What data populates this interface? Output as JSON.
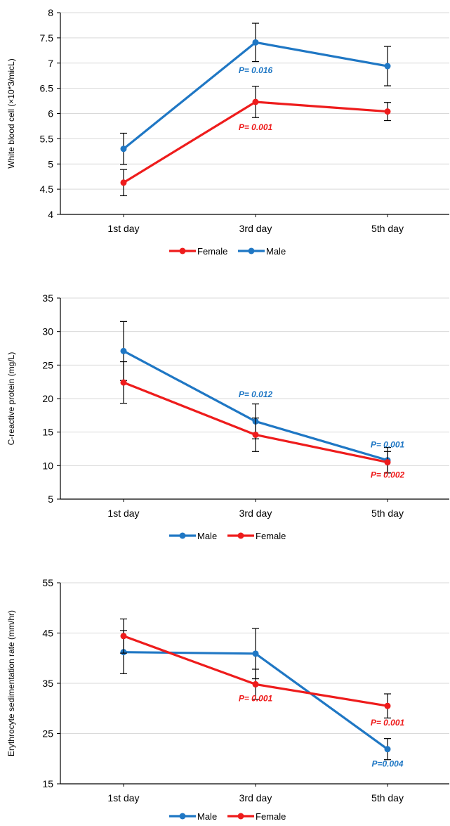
{
  "colors": {
    "male": "#1f77c4",
    "female": "#ee1c1c",
    "grid": "#d9d9d9",
    "axis": "#000000"
  },
  "chart_data": [
    {
      "type": "line",
      "title": "",
      "xlabel": "",
      "ylabel": "White blood cell (×10*3/micL)",
      "categories": [
        "1st  day",
        "3rd  day",
        "5th  day"
      ],
      "ylim": [
        4,
        8
      ],
      "yticks": [
        "4",
        "4.5",
        "5",
        "5.5",
        "6",
        "6.5",
        "7",
        "7.5",
        "8"
      ],
      "grid": true,
      "legend_position": "bottom",
      "legend_order": [
        "Female",
        "Male"
      ],
      "series": [
        {
          "name": "Female",
          "color": "#ee1c1c",
          "values": [
            4.63,
            6.23,
            6.04
          ],
          "error": [
            0.26,
            0.31,
            0.18
          ]
        },
        {
          "name": "Male",
          "color": "#1f77c4",
          "values": [
            5.3,
            7.41,
            6.94
          ],
          "error": [
            0.31,
            0.38,
            0.39
          ]
        }
      ],
      "annotations": [
        {
          "text": "P= 0.016",
          "series": "Male",
          "category": 1,
          "y": 6.8
        },
        {
          "text": "P= 0.001",
          "series": "Female",
          "category": 1,
          "y": 5.67
        }
      ]
    },
    {
      "type": "line",
      "title": "",
      "xlabel": "",
      "ylabel": "C-reactive protein (mg/L)",
      "categories": [
        "1st  day",
        "3rd  day",
        "5th  day"
      ],
      "ylim": [
        5,
        35
      ],
      "yticks": [
        "5",
        "10",
        "15",
        "20",
        "25",
        "30",
        "35"
      ],
      "grid": true,
      "legend_position": "bottom",
      "legend_order": [
        "Male",
        "Female"
      ],
      "series": [
        {
          "name": "Male",
          "color": "#1f77c4",
          "values": [
            27.1,
            16.6,
            10.8
          ],
          "error": [
            4.4,
            2.6,
            1.9
          ]
        },
        {
          "name": "Female",
          "color": "#ee1c1c",
          "values": [
            22.4,
            14.6,
            10.5
          ],
          "error": [
            3.1,
            2.5,
            1.6
          ]
        }
      ],
      "annotations": [
        {
          "text": "P= 0.012",
          "series": "Male",
          "category": 1,
          "y": 20.2
        },
        {
          "text": "P= 0.001",
          "series": "Male",
          "category": 2,
          "y": 12.7
        },
        {
          "text": "P= 0.002",
          "series": "Female",
          "category": 2,
          "y": 8.2
        }
      ]
    },
    {
      "type": "line",
      "title": "",
      "xlabel": "",
      "ylabel": "Erythrocyte sedimentation rate (mm/hr)",
      "categories": [
        "1st  day",
        "3rd  day",
        "5th  day"
      ],
      "ylim": [
        15,
        55
      ],
      "yticks": [
        "15",
        "25",
        "35",
        "45",
        "55"
      ],
      "grid": true,
      "legend_position": "bottom",
      "legend_order": [
        "Male",
        "Female"
      ],
      "series": [
        {
          "name": "Male",
          "color": "#1f77c4",
          "values": [
            41.2,
            40.9,
            21.9
          ],
          "error": [
            4.3,
            5.0,
            2.1
          ]
        },
        {
          "name": "Female",
          "color": "#ee1c1c",
          "values": [
            44.4,
            34.8,
            30.5
          ],
          "error": [
            3.4,
            3.0,
            2.4
          ]
        }
      ],
      "annotations": [
        {
          "text": "P= 0.001",
          "series": "Female",
          "category": 1,
          "y": 31.4
        },
        {
          "text": "P= 0.001",
          "series": "Female",
          "category": 2,
          "y": 26.6
        },
        {
          "text": "P=0.004",
          "series": "Male",
          "category": 2,
          "y": 18.4
        }
      ]
    }
  ]
}
